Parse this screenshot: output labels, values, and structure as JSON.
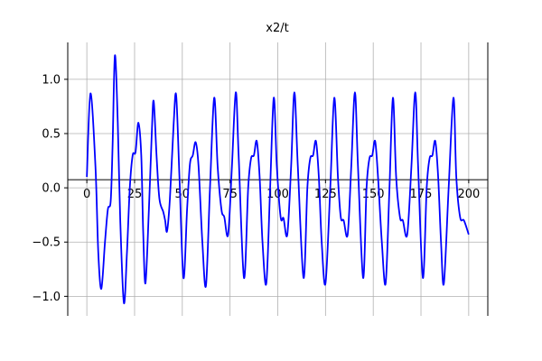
{
  "chart_data": {
    "type": "line",
    "title": "x2/t",
    "xlim": [
      -10,
      210
    ],
    "ylim": [
      -1.18,
      1.34
    ],
    "xticks": [
      0,
      25,
      50,
      75,
      100,
      125,
      150,
      175,
      200
    ],
    "yticks": [
      {
        "value": -1.0,
        "label": "−1.0"
      },
      {
        "value": -0.5,
        "label": "−0.5"
      },
      {
        "value": 0.0,
        "label": "0.0"
      },
      0.5,
      {
        "value": 1.0,
        "label": "1.0"
      }
    ],
    "xaxis_at": 0.075,
    "grid": true,
    "series": [
      {
        "color": "#0000ff",
        "x": [
          0,
          1.9,
          4.5,
          6,
          7.6,
          9.5,
          11,
          12.5,
          13.5,
          14.7,
          16.2,
          17.5,
          19.4,
          21,
          22.5,
          24,
          25.5,
          27,
          28.5,
          29.5,
          30.7,
          32.5,
          34,
          35,
          36.5,
          38,
          40,
          41,
          42,
          43.5,
          45.5,
          46.8,
          48.5,
          50.6,
          52.5,
          54,
          55.5,
          57,
          58.5,
          60.5,
          62.4,
          64.5,
          66.7,
          68.5,
          70.5,
          72,
          74,
          76,
          78,
          79.5,
          82.3,
          84.5,
          86,
          87.5,
          89,
          90.5,
          92,
          94,
          96,
          97.9,
          99.5,
          101.5,
          103,
          105,
          107,
          108.7,
          110.5,
          113.5,
          115.5,
          117,
          118.5,
          120,
          121.5,
          123,
          125,
          127.5,
          129.6,
          131.5,
          133,
          134.5,
          136.6,
          138.5,
          140.4,
          142,
          144.7,
          146.5,
          148,
          149.5,
          151,
          152.5,
          154.5,
          156.5,
          158.5,
          160.3,
          162,
          164,
          165.5,
          167.8,
          170,
          172,
          173.5,
          176,
          178,
          179.5,
          181,
          182.5,
          184,
          185.5,
          187,
          189.5,
          192,
          193.5,
          195.5,
          197.5,
          200
        ],
        "values": [
          0.1,
          0.87,
          0.2,
          -0.6,
          -0.93,
          -0.5,
          -0.2,
          -0.12,
          0.4,
          1.22,
          0.6,
          -0.3,
          -1.06,
          -0.6,
          0.0,
          0.3,
          0.33,
          0.6,
          0.3,
          -0.4,
          -0.88,
          -0.2,
          0.5,
          0.8,
          0.3,
          -0.1,
          -0.22,
          -0.3,
          -0.4,
          -0.1,
          0.6,
          0.85,
          0.1,
          -0.83,
          -0.2,
          0.22,
          0.3,
          0.42,
          0.2,
          -0.5,
          -0.9,
          0.0,
          0.83,
          0.2,
          -0.2,
          -0.27,
          -0.43,
          0.2,
          0.88,
          0.3,
          -0.83,
          0.0,
          0.27,
          0.3,
          0.43,
          0.1,
          -0.5,
          -0.88,
          0.0,
          0.83,
          0.2,
          -0.27,
          -0.28,
          -0.43,
          0.2,
          0.88,
          0.2,
          -0.83,
          0.0,
          0.27,
          0.3,
          0.43,
          0.1,
          -0.5,
          -0.88,
          0.0,
          0.83,
          0.1,
          -0.27,
          -0.3,
          -0.43,
          0.2,
          0.88,
          0.2,
          -0.83,
          0.0,
          0.27,
          0.3,
          0.43,
          0.1,
          -0.5,
          -0.88,
          0.0,
          0.83,
          0.1,
          -0.27,
          -0.3,
          -0.43,
          0.2,
          0.88,
          0.2,
          -0.83,
          0.0,
          0.27,
          0.3,
          0.43,
          0.1,
          -0.5,
          -0.88,
          0.0,
          0.83,
          0.1,
          -0.27,
          -0.3,
          -0.43
        ]
      }
    ]
  }
}
